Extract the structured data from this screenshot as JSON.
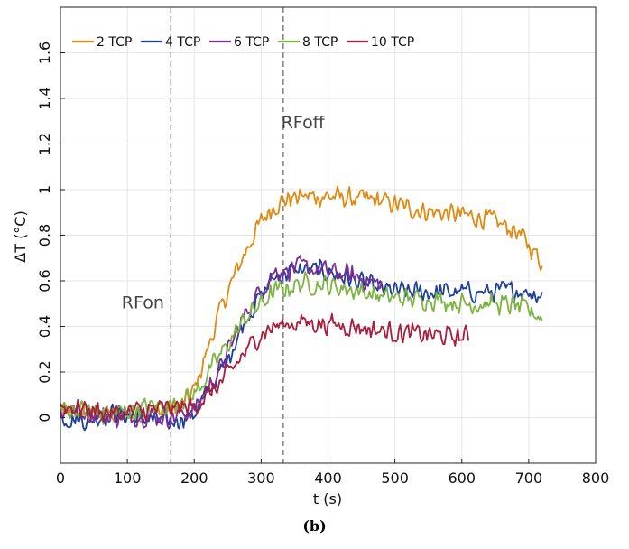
{
  "chart_data": {
    "type": "line",
    "xlabel": "t (s)",
    "ylabel": "ΔT (°C)",
    "xlim": [
      0,
      800
    ],
    "ylim": [
      -0.2,
      1.8
    ],
    "xticks": [
      "0",
      "100",
      "200",
      "300",
      "400",
      "500",
      "600",
      "700",
      "800"
    ],
    "yticks": [
      "0",
      "0.2",
      "0.4",
      "0.6",
      "0.8",
      "1",
      "1.2",
      "1.4",
      "1.6"
    ],
    "grid": true,
    "legend_position": "top-left",
    "annotations": [
      {
        "text": "RFon",
        "x": 155,
        "y": 0.48
      },
      {
        "text": "RFoff",
        "x": 330,
        "y": 1.27
      }
    ],
    "vlines": [
      165,
      333
    ],
    "series": [
      {
        "name": "2 TCP",
        "color": "#e08a12",
        "x": [
          0,
          40,
          80,
          120,
          165,
          180,
          200,
          220,
          240,
          260,
          280,
          300,
          320,
          340,
          360,
          400,
          440,
          480,
          520,
          560,
          600,
          640,
          680,
          700,
          720
        ],
        "y": [
          0.02,
          0.02,
          0.0,
          0.02,
          0.04,
          0.05,
          0.12,
          0.3,
          0.48,
          0.62,
          0.75,
          0.86,
          0.93,
          0.96,
          0.97,
          0.97,
          0.96,
          0.95,
          0.92,
          0.9,
          0.89,
          0.87,
          0.82,
          0.76,
          0.68
        ]
      },
      {
        "name": "4 TCP",
        "color": "#1f3f9a",
        "x": [
          0,
          40,
          80,
          120,
          165,
          200,
          240,
          280,
          320,
          360,
          400,
          440,
          480,
          520,
          560,
          600,
          640,
          680,
          700,
          720
        ],
        "y": [
          0.0,
          -0.01,
          0.02,
          0.0,
          -0.02,
          0.02,
          0.2,
          0.45,
          0.62,
          0.65,
          0.64,
          0.6,
          0.56,
          0.55,
          0.55,
          0.55,
          0.55,
          0.56,
          0.55,
          0.54
        ]
      },
      {
        "name": "6 TCP",
        "color": "#7a2e94",
        "x": [
          0,
          40,
          80,
          120,
          165,
          200,
          240,
          280,
          320,
          360,
          400,
          440,
          480
        ],
        "y": [
          0.03,
          0.02,
          0.0,
          0.01,
          0.0,
          0.03,
          0.22,
          0.48,
          0.64,
          0.66,
          0.64,
          0.62,
          0.58
        ]
      },
      {
        "name": "8 TCP",
        "color": "#7cb342",
        "x": [
          0,
          40,
          80,
          120,
          165,
          200,
          240,
          280,
          320,
          360,
          400,
          440,
          480,
          520,
          560,
          600,
          640,
          680,
          700,
          720
        ],
        "y": [
          0.04,
          0.03,
          0.02,
          0.04,
          0.06,
          0.1,
          0.28,
          0.45,
          0.55,
          0.59,
          0.58,
          0.56,
          0.53,
          0.52,
          0.52,
          0.5,
          0.5,
          0.49,
          0.47,
          0.44
        ]
      },
      {
        "name": "10 TCP",
        "color": "#a81e3c",
        "x": [
          0,
          40,
          80,
          120,
          165,
          200,
          240,
          280,
          300,
          320,
          360,
          400,
          440,
          480,
          520,
          560,
          600,
          610
        ],
        "y": [
          0.05,
          0.04,
          0.02,
          0.03,
          0.04,
          0.05,
          0.15,
          0.3,
          0.37,
          0.4,
          0.42,
          0.41,
          0.4,
          0.38,
          0.37,
          0.36,
          0.35,
          0.36
        ]
      }
    ]
  },
  "caption": "(b)"
}
